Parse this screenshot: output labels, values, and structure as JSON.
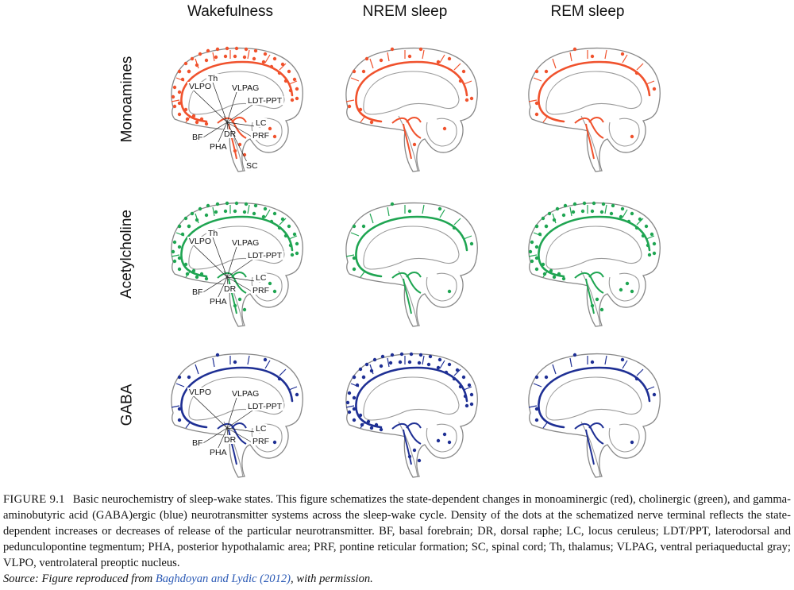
{
  "columns": [
    "Wakefulness",
    "NREM sleep",
    "REM sleep"
  ],
  "rows": [
    {
      "label": "Monoamines",
      "color": "#f0522d"
    },
    {
      "label": "Acetylcholine",
      "color": "#1fa552"
    },
    {
      "label": "GABA",
      "color": "#1e2f94"
    }
  ],
  "density": [
    [
      "high",
      "medium",
      "low"
    ],
    [
      "high",
      "low",
      "high"
    ],
    [
      "low",
      "high",
      "low"
    ]
  ],
  "region_labels": {
    "monoamines": [
      "VLPO",
      "Th",
      "VLPAG",
      "LDT-PPT",
      "LC",
      "PRF",
      "DR",
      "BF",
      "PHA",
      "SC"
    ],
    "acetylcholine": [
      "VLPO",
      "Th",
      "VLPAG",
      "LDT-PPT",
      "LC",
      "PRF",
      "DR",
      "BF",
      "PHA"
    ],
    "gaba": [
      "VLPO",
      "VLPAG",
      "LDT-PPT",
      "LC",
      "PRF",
      "DR",
      "BF",
      "PHA"
    ]
  },
  "caption": {
    "figure_number": "FIGURE 9.1",
    "text": "Basic neurochemistry of sleep-wake states. This figure schematizes the state-dependent changes in monoaminergic (red), cholinergic (green), and gamma-aminobutyric acid (GABA)ergic (blue) neurotransmitter systems across the sleep-wake cycle. Density of the dots at the schematized nerve terminal reflects the state-dependent increases or decreases of release of the particular neurotransmitter. BF, basal forebrain; DR, dorsal raphe; LC, locus ceruleus; LDT/PPT, laterodorsal and pedunculopontine tegmentum; PHA, posterior hypothalamic area; PRF, pontine reticular formation; SC, spinal cord; Th, thalamus; VLPAG, ventral periaqueductal gray; VLPO, ventrolateral preoptic nucleus.",
    "source_prefix": "Source: Figure reproduced from ",
    "source_link": "Baghdoyan and Lydic (2012)",
    "source_suffix": ", with permission."
  }
}
